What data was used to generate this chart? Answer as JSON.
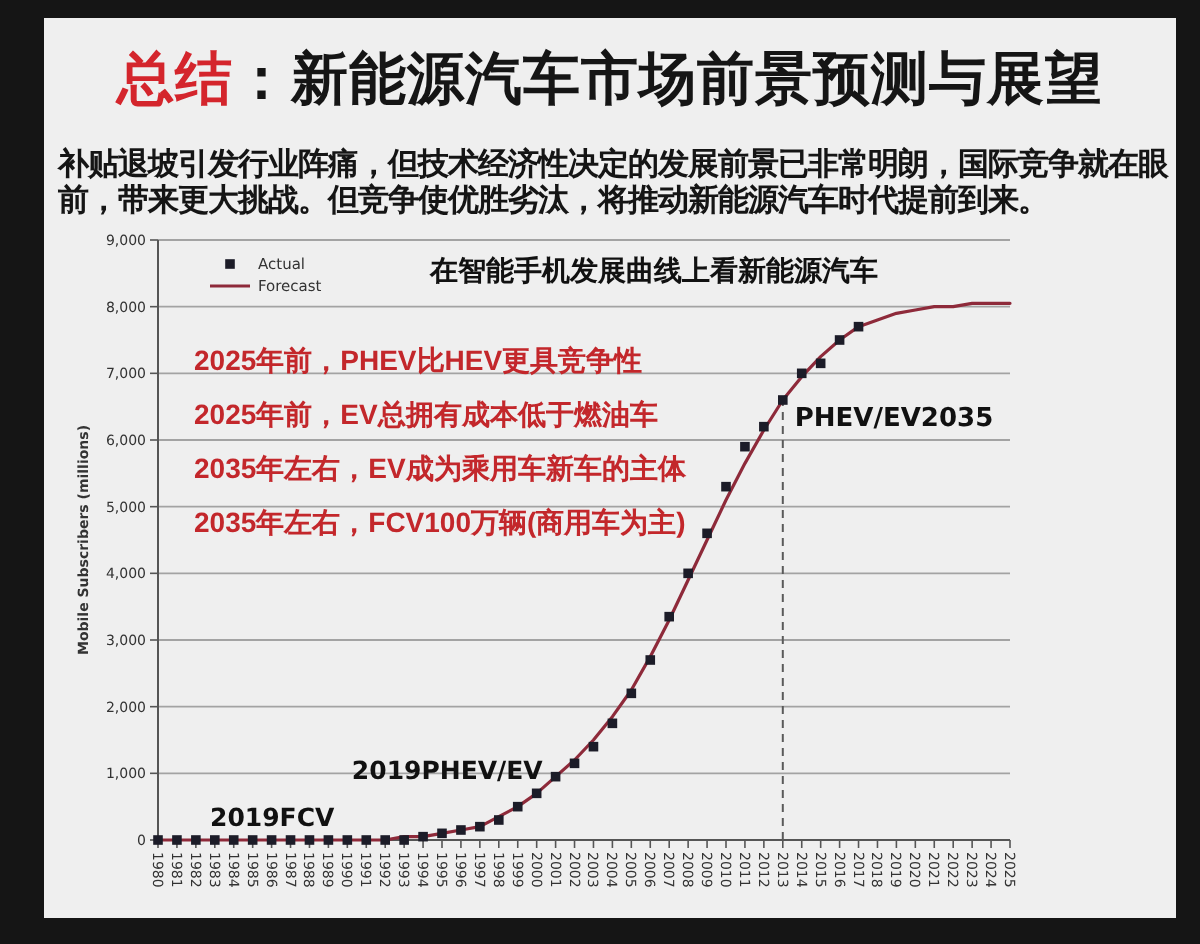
{
  "chart_data": {
    "type": "line",
    "title": "总结：新能源汽车市场前景预测与展望",
    "subtitle": "补贴退坡引发行业阵痛，但技术经济性决定的发展前景已非常明朗，国际竞争就在眼前，带来更大挑战。但竞争使优胜劣汰，将推动新能源汽车时代提前到来。",
    "ylabel": "Mobile Subscribers (millions)",
    "x": [
      1980,
      1981,
      1982,
      1983,
      1984,
      1985,
      1986,
      1987,
      1988,
      1989,
      1990,
      1991,
      1992,
      1993,
      1994,
      1995,
      1996,
      1997,
      1998,
      1999,
      2000,
      2001,
      2002,
      2003,
      2004,
      2005,
      2006,
      2007,
      2008,
      2009,
      2010,
      2011,
      2012,
      2013,
      2014,
      2015,
      2016,
      2017,
      2018,
      2019,
      2020,
      2021,
      2022,
      2023,
      2024,
      2025
    ],
    "series": [
      {
        "name": "Actual",
        "type": "scatter",
        "marker": "square",
        "color": "#1c1c28",
        "x": [
          1980,
          1981,
          1982,
          1983,
          1984,
          1985,
          1986,
          1987,
          1988,
          1989,
          1990,
          1991,
          1992,
          1993,
          1994,
          1995,
          1996,
          1997,
          1998,
          1999,
          2000,
          2001,
          2002,
          2003,
          2004,
          2005,
          2006,
          2007,
          2008,
          2009,
          2010,
          2011,
          2012,
          2013,
          2014,
          2015,
          2016,
          2017
        ],
        "values": [
          0,
          0,
          0,
          0,
          0,
          0,
          0,
          0,
          0,
          0,
          0,
          0,
          0,
          0,
          50,
          100,
          150,
          200,
          300,
          500,
          700,
          950,
          1150,
          1400,
          1750,
          2200,
          2700,
          3350,
          4000,
          4600,
          5300,
          5900,
          6200,
          6600,
          7000,
          7150,
          7500,
          7700
        ]
      },
      {
        "name": "Forecast",
        "marker": "none",
        "color": "#8e2a3a",
        "values": [
          0,
          0,
          0,
          0,
          0,
          0,
          0,
          0,
          0,
          0,
          0,
          0,
          0,
          50,
          50,
          100,
          150,
          200,
          350,
          500,
          700,
          950,
          1200,
          1500,
          1850,
          2250,
          2750,
          3300,
          3900,
          4500,
          5100,
          5650,
          6150,
          6600,
          6950,
          7250,
          7500,
          7700,
          7800,
          7900,
          7950,
          8000,
          8000,
          8050,
          8050,
          8050
        ]
      }
    ],
    "xlim": [
      1980,
      2025
    ],
    "xticks": [
      1980,
      1981,
      1982,
      1983,
      1984,
      1985,
      1986,
      1987,
      1988,
      1989,
      1990,
      1991,
      1992,
      1993,
      1994,
      1995,
      1996,
      1997,
      1998,
      1999,
      2000,
      2001,
      2002,
      2003,
      2004,
      2005,
      2006,
      2007,
      2008,
      2009,
      2010,
      2011,
      2012,
      2013,
      2014,
      2015,
      2016,
      2017,
      2018,
      2019,
      2020,
      2021,
      2022,
      2023,
      2024,
      2025
    ],
    "ylim": [
      0,
      9000
    ],
    "yticks": [
      0,
      {
        "value": 1000,
        "label": "1,000"
      },
      {
        "value": 2000,
        "label": "2,000"
      },
      {
        "value": 3000,
        "label": "3,000"
      },
      {
        "value": 4000,
        "label": "4,000"
      },
      {
        "value": 5000,
        "label": "5,000"
      },
      {
        "value": 6000,
        "label": "6,000"
      },
      {
        "value": 7000,
        "label": "7,000"
      },
      {
        "value": 8000,
        "label": "8,000"
      },
      {
        "value": 9000,
        "label": "9,000"
      }
    ],
    "grid": "y",
    "legend": "top left",
    "ref_lines": [
      {
        "axis": "x",
        "value": 2013,
        "line_style": "dashed",
        "color": "#5a5a5a"
      }
    ],
    "annotations": [
      "在智能手机发展曲线上看新能源汽车",
      "2025年前，PHEV比HEV更具竞争性",
      "2025年前，EV总拥有成本低于燃油车",
      "2035年左右，EV成为乘用车新车的主体",
      "2035年左右，FCV100万辆(商用车为主)",
      {
        "text": "2019FCV",
        "x": 1989,
        "y": 0
      },
      {
        "text": "2019PHEV/EV",
        "x": 2000,
        "y": 700
      },
      {
        "text": "PHEV/EV2035",
        "x": 2013,
        "y": 6600
      }
    ]
  }
}
